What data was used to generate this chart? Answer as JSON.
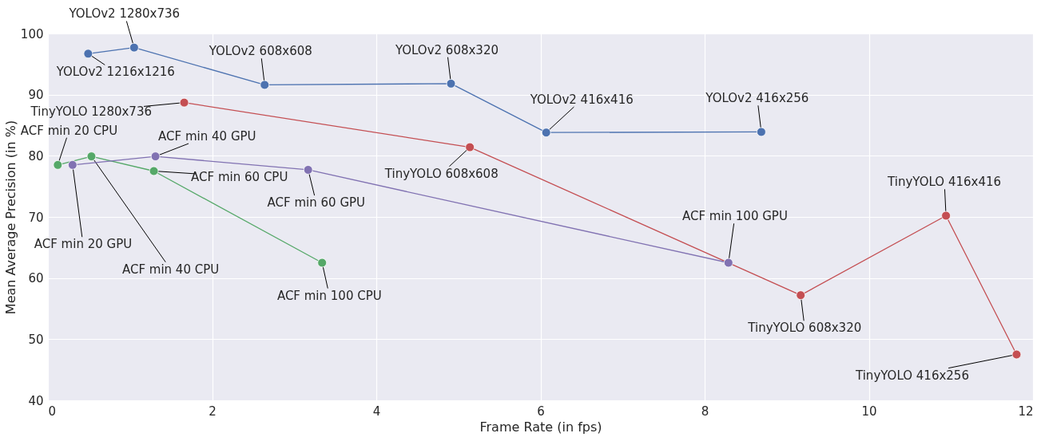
{
  "chart_data": {
    "type": "line",
    "xlabel": "Frame Rate (in fps)",
    "ylabel": "Mean Average Precision (in %)",
    "xlim": [
      0,
      12
    ],
    "ylim": [
      40,
      100
    ],
    "xticks": [
      0,
      2,
      4,
      6,
      8,
      10,
      12
    ],
    "yticks": [
      40,
      50,
      60,
      70,
      80,
      90,
      100
    ],
    "grid": true,
    "marker": "circle",
    "line_style": "solid",
    "series": [
      {
        "color": "#4c72b0",
        "x": [
          0.49,
          1.05,
          2.64,
          4.91,
          6.07,
          8.69
        ],
        "values": [
          96.7,
          97.7,
          91.6,
          91.8,
          83.8,
          83.9
        ]
      },
      {
        "color": "#c44e52",
        "x": [
          1.66,
          5.14,
          9.17,
          10.94,
          11.8
        ],
        "values": [
          88.7,
          81.4,
          57.2,
          70.2,
          47.5
        ]
      },
      {
        "color": "#55a868",
        "x": [
          0.12,
          0.53,
          1.29,
          3.34
        ],
        "values": [
          78.5,
          79.9,
          77.5,
          62.5
        ]
      },
      {
        "color": "#8172b2",
        "x": [
          0.3,
          1.31,
          3.17,
          8.29
        ],
        "values": [
          78.5,
          79.9,
          77.7,
          62.5
        ]
      }
    ],
    "annotations": [
      {
        "text": "YOLOv2 1216x1216",
        "x": 0.49,
        "y": 96.7
      },
      {
        "text": "YOLOv2 1280x736",
        "x": 1.05,
        "y": 97.7
      },
      {
        "text": "YOLOv2 608x608",
        "x": 2.64,
        "y": 91.6
      },
      {
        "text": "YOLOv2 608x320",
        "x": 4.91,
        "y": 91.8
      },
      {
        "text": "YOLOv2 416x416",
        "x": 6.07,
        "y": 83.8
      },
      {
        "text": "YOLOv2 416x256",
        "x": 8.69,
        "y": 83.9
      },
      {
        "text": "TinyYOLO 1280x736",
        "x": 1.66,
        "y": 88.7
      },
      {
        "text": "TinyYOLO 608x608",
        "x": 5.14,
        "y": 81.4
      },
      {
        "text": "TinyYOLO 608x320",
        "x": 9.17,
        "y": 57.2
      },
      {
        "text": "TinyYOLO 416x416",
        "x": 10.94,
        "y": 70.2
      },
      {
        "text": "TinyYOLO 416x256",
        "x": 11.8,
        "y": 47.5
      },
      {
        "text": "ACF min 20 CPU",
        "x": 0.12,
        "y": 78.5
      },
      {
        "text": "ACF min 40 CPU",
        "x": 0.53,
        "y": 79.9
      },
      {
        "text": "ACF min 60 CPU",
        "x": 1.29,
        "y": 77.5
      },
      {
        "text": "ACF min 100 CPU",
        "x": 3.34,
        "y": 62.5
      },
      {
        "text": "ACF min 20 GPU",
        "x": 0.3,
        "y": 78.5
      },
      {
        "text": "ACF min 40 GPU",
        "x": 1.31,
        "y": 79.9
      },
      {
        "text": "ACF min 60 GPU",
        "x": 3.17,
        "y": 77.7
      },
      {
        "text": "ACF min 100 GPU",
        "x": 8.29,
        "y": 62.5
      }
    ]
  }
}
